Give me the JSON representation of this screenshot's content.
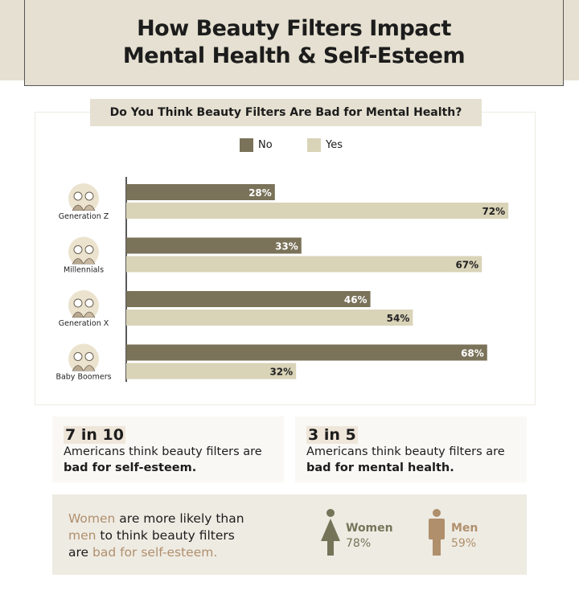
{
  "title_line1": "How Beauty Filters Impact",
  "title_line2": "Mental Health & Self-Esteem",
  "chart_data": {
    "type": "bar",
    "orientation": "horizontal",
    "title": "Do You Think Beauty Filters Are Bad for Mental Health?",
    "categories": [
      "Generation Z",
      "Millennials",
      "Generation X",
      "Baby Boomers"
    ],
    "series": [
      {
        "name": "No",
        "values": [
          28,
          33,
          46,
          68
        ],
        "color": "#7a7259"
      },
      {
        "name": "Yes",
        "values": [
          72,
          67,
          54,
          32
        ],
        "color": "#d9d3b8"
      }
    ],
    "unit": "%",
    "xlim": [
      0,
      100
    ],
    "legend": "top-center",
    "grid": false
  },
  "stats": [
    {
      "big": "7 in 10",
      "text": "Americans think beauty filters are",
      "bold": "bad for self-esteem."
    },
    {
      "big": "3 in 5",
      "text": "Americans think beauty filters are",
      "bold": "bad for mental health."
    }
  ],
  "gender": {
    "w1": "Women",
    "t1": " are more likely than",
    "w2": "men",
    "t2": " to think beauty filters",
    "t3": "are ",
    "w3": "bad for self-esteem.",
    "women_label": "Women",
    "women_value": "78%",
    "women_color": "#767458",
    "men_label": "Men",
    "men_value": "59%",
    "men_color": "#b08f6c"
  }
}
